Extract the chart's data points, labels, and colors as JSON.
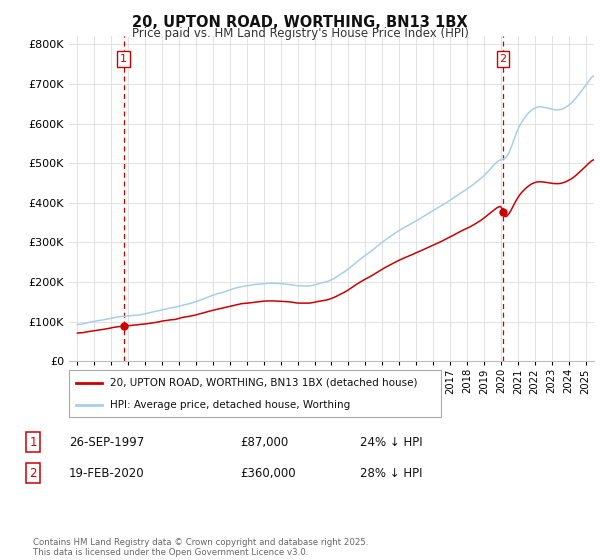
{
  "title": "20, UPTON ROAD, WORTHING, BN13 1BX",
  "subtitle": "Price paid vs. HM Land Registry's House Price Index (HPI)",
  "legend_line1": "20, UPTON ROAD, WORTHING, BN13 1BX (detached house)",
  "legend_line2": "HPI: Average price, detached house, Worthing",
  "point1_label": "1",
  "point1_date": "26-SEP-1997",
  "point1_price": "£87,000",
  "point1_hpi": "24% ↓ HPI",
  "point1_year": 1997.73,
  "point1_value": 87000,
  "point2_label": "2",
  "point2_date": "19-FEB-2020",
  "point2_price": "£360,000",
  "point2_hpi": "28% ↓ HPI",
  "point2_year": 2020.13,
  "point2_value": 360000,
  "footer": "Contains HM Land Registry data © Crown copyright and database right 2025.\nThis data is licensed under the Open Government Licence v3.0.",
  "hpi_color": "#a8cfe8",
  "price_color": "#cc0000",
  "vline_color": "#cc0000",
  "background_color": "#ffffff",
  "grid_color": "#dddddd",
  "ylim": [
    0,
    820000
  ],
  "xlim_start": 1994.5,
  "xlim_end": 2025.5
}
